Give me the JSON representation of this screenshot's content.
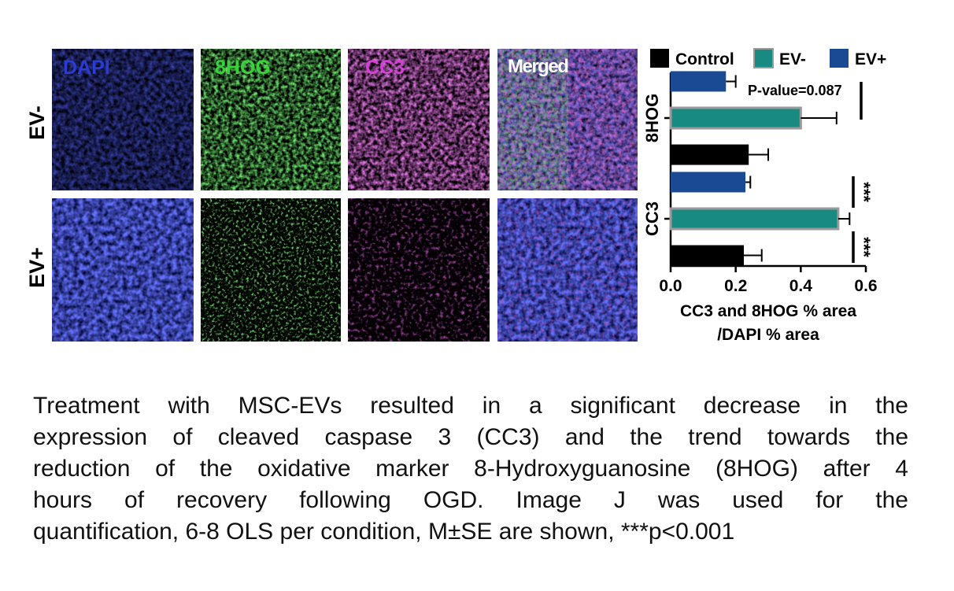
{
  "panels": {
    "channels": [
      {
        "label": "DAPI",
        "color": "#2a3bd6"
      },
      {
        "label": "8HOG",
        "color": "#39d23a"
      },
      {
        "label": "CC3",
        "color": "#d640d6"
      },
      {
        "label": "Merged",
        "color": "#ffffff"
      }
    ],
    "rows": [
      {
        "label": "EV-"
      },
      {
        "label": "EV+"
      }
    ]
  },
  "chart_data": {
    "type": "bar",
    "orientation": "horizontal",
    "groups": [
      "8HOG",
      "CC3"
    ],
    "series": [
      {
        "name": "Control",
        "color": "#000000",
        "values": [
          0.24,
          0.225
        ],
        "errors": [
          0.06,
          0.055
        ]
      },
      {
        "name": "EV-",
        "color": "#188a82",
        "values": [
          0.4,
          0.515
        ],
        "errors": [
          0.11,
          0.035
        ]
      },
      {
        "name": "EV+",
        "color": "#1a4a93",
        "values": [
          0.17,
          0.23
        ],
        "errors": [
          0.03,
          0.015
        ]
      }
    ],
    "xlabel": [
      "CC3 and 8HOG % area",
      "/DAPI % area"
    ],
    "xlim": [
      0.0,
      0.6
    ],
    "xticks": [
      "0.0",
      "0.2",
      "0.4",
      "0.6"
    ],
    "annotations": {
      "pvalue": "P-value=0.087",
      "sig_top": "***",
      "sig_bottom": "***"
    },
    "legend_position": "top"
  },
  "caption": [
    "Treatment with MSC-EVs resulted in a significant decrease in the",
    "expression of cleaved caspase 3 (CC3) and the trend towards the",
    "reduction of the oxidative marker 8-Hydroxyguanosine (8HOG) after 4",
    "hours of recovery following OGD. Image J was used for the",
    "quantification, 6-8 OLS per condition, M±SE are shown,  ***p<0.001"
  ]
}
